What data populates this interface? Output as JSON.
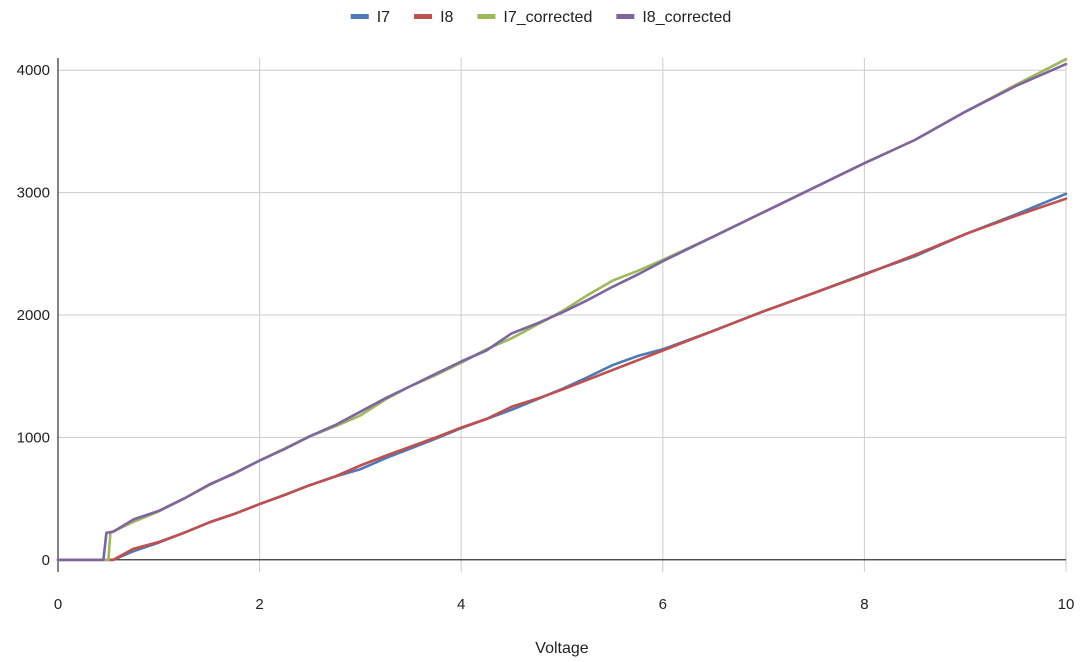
{
  "chart_data": {
    "type": "line",
    "xlabel": "Voltage",
    "ylabel": "",
    "xlim": [
      0,
      10
    ],
    "ylim": [
      -100,
      4100
    ],
    "x_ticks": [
      0,
      2,
      4,
      6,
      8,
      10
    ],
    "y_ticks": [
      0,
      1000,
      2000,
      3000,
      4000
    ],
    "grid": true,
    "legend_position": "top-center",
    "series": [
      {
        "name": "I7",
        "color": "#4e79b8",
        "points": [
          [
            0,
            0
          ],
          [
            0.45,
            0
          ],
          [
            0.5,
            0
          ],
          [
            0.55,
            0
          ],
          [
            0.75,
            70
          ],
          [
            1,
            140
          ],
          [
            1.25,
            220
          ],
          [
            1.5,
            305
          ],
          [
            1.75,
            375
          ],
          [
            2,
            455
          ],
          [
            2.25,
            530
          ],
          [
            2.5,
            610
          ],
          [
            2.75,
            680
          ],
          [
            3,
            740
          ],
          [
            3.25,
            830
          ],
          [
            3.5,
            910
          ],
          [
            3.75,
            990
          ],
          [
            4,
            1075
          ],
          [
            4.25,
            1150
          ],
          [
            4.5,
            1225
          ],
          [
            4.75,
            1310
          ],
          [
            5,
            1395
          ],
          [
            5.25,
            1490
          ],
          [
            5.5,
            1590
          ],
          [
            5.75,
            1665
          ],
          [
            6,
            1720
          ],
          [
            6.5,
            1870
          ],
          [
            7,
            2030
          ],
          [
            7.5,
            2180
          ],
          [
            8,
            2335
          ],
          [
            8.5,
            2480
          ],
          [
            9,
            2660
          ],
          [
            9.5,
            2820
          ],
          [
            10,
            2990
          ]
        ]
      },
      {
        "name": "I8",
        "color": "#c0504d",
        "points": [
          [
            0,
            0
          ],
          [
            0.45,
            0
          ],
          [
            0.5,
            0
          ],
          [
            0.55,
            0
          ],
          [
            0.75,
            90
          ],
          [
            1,
            145
          ],
          [
            1.25,
            220
          ],
          [
            1.5,
            305
          ],
          [
            1.75,
            375
          ],
          [
            2,
            455
          ],
          [
            2.25,
            530
          ],
          [
            2.5,
            610
          ],
          [
            2.75,
            680
          ],
          [
            3,
            770
          ],
          [
            3.25,
            850
          ],
          [
            3.5,
            925
          ],
          [
            3.75,
            1000
          ],
          [
            4,
            1080
          ],
          [
            4.25,
            1150
          ],
          [
            4.5,
            1250
          ],
          [
            4.75,
            1315
          ],
          [
            5,
            1390
          ],
          [
            5.25,
            1470
          ],
          [
            5.5,
            1550
          ],
          [
            5.75,
            1630
          ],
          [
            6,
            1710
          ],
          [
            6.5,
            1870
          ],
          [
            7,
            2030
          ],
          [
            7.5,
            2180
          ],
          [
            8,
            2330
          ],
          [
            8.5,
            2490
          ],
          [
            9,
            2660
          ],
          [
            9.5,
            2810
          ],
          [
            10,
            2950
          ]
        ]
      },
      {
        "name": "I7_corrected",
        "color": "#9bbb59",
        "points": [
          [
            0,
            0
          ],
          [
            0.45,
            0
          ],
          [
            0.5,
            0
          ],
          [
            0.52,
            220
          ],
          [
            0.75,
            310
          ],
          [
            1,
            395
          ],
          [
            1.25,
            500
          ],
          [
            1.5,
            610
          ],
          [
            1.75,
            710
          ],
          [
            2,
            810
          ],
          [
            2.25,
            910
          ],
          [
            2.5,
            1010
          ],
          [
            2.75,
            1090
          ],
          [
            3,
            1180
          ],
          [
            3.25,
            1310
          ],
          [
            3.5,
            1420
          ],
          [
            3.75,
            1510
          ],
          [
            4,
            1610
          ],
          [
            4.25,
            1720
          ],
          [
            4.5,
            1810
          ],
          [
            4.75,
            1920
          ],
          [
            5,
            2030
          ],
          [
            5.25,
            2160
          ],
          [
            5.5,
            2280
          ],
          [
            5.75,
            2360
          ],
          [
            6,
            2450
          ],
          [
            6.5,
            2640
          ],
          [
            7,
            2840
          ],
          [
            7.5,
            3040
          ],
          [
            8,
            3240
          ],
          [
            8.5,
            3430
          ],
          [
            9,
            3660
          ],
          [
            9.5,
            3880
          ],
          [
            10,
            4090
          ]
        ]
      },
      {
        "name": "I8_corrected",
        "color": "#8064a2",
        "points": [
          [
            0,
            0
          ],
          [
            0.45,
            0
          ],
          [
            0.48,
            220
          ],
          [
            0.55,
            230
          ],
          [
            0.75,
            330
          ],
          [
            1,
            400
          ],
          [
            1.25,
            500
          ],
          [
            1.5,
            615
          ],
          [
            1.75,
            705
          ],
          [
            2,
            810
          ],
          [
            2.25,
            905
          ],
          [
            2.5,
            1010
          ],
          [
            2.75,
            1100
          ],
          [
            3,
            1210
          ],
          [
            3.25,
            1320
          ],
          [
            3.5,
            1420
          ],
          [
            3.75,
            1520
          ],
          [
            4,
            1620
          ],
          [
            4.25,
            1710
          ],
          [
            4.5,
            1850
          ],
          [
            4.75,
            1930
          ],
          [
            5,
            2020
          ],
          [
            5.25,
            2120
          ],
          [
            5.5,
            2230
          ],
          [
            5.75,
            2330
          ],
          [
            6,
            2440
          ],
          [
            6.5,
            2640
          ],
          [
            7,
            2840
          ],
          [
            7.5,
            3040
          ],
          [
            8,
            3240
          ],
          [
            8.5,
            3430
          ],
          [
            9,
            3660
          ],
          [
            9.5,
            3870
          ],
          [
            10,
            4050
          ]
        ]
      }
    ]
  }
}
